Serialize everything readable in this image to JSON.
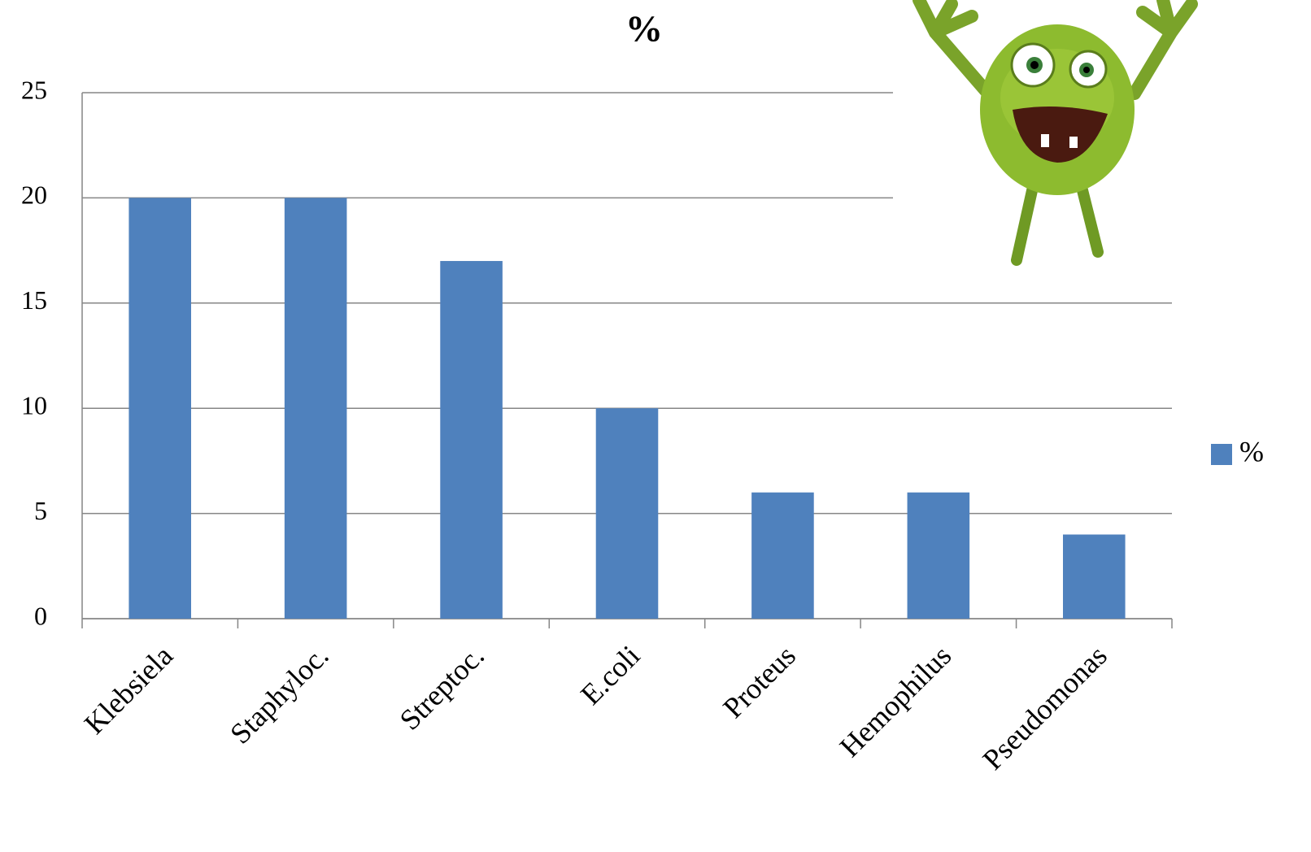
{
  "chart_data": {
    "type": "bar",
    "title": "%",
    "categories": [
      "Klebsiela",
      "Staphyloc.",
      "Streptoc.",
      "E.coli",
      "Proteus",
      "Hemophilus",
      "Pseudomonas"
    ],
    "series": [
      {
        "name": "%",
        "color": "#4f81bd",
        "values": [
          20,
          20,
          17,
          10,
          6,
          6,
          4
        ]
      }
    ],
    "ylim": [
      0,
      25
    ],
    "yticks": [
      0,
      5,
      10,
      15,
      20,
      25
    ],
    "grid": true,
    "legend": "right"
  }
}
